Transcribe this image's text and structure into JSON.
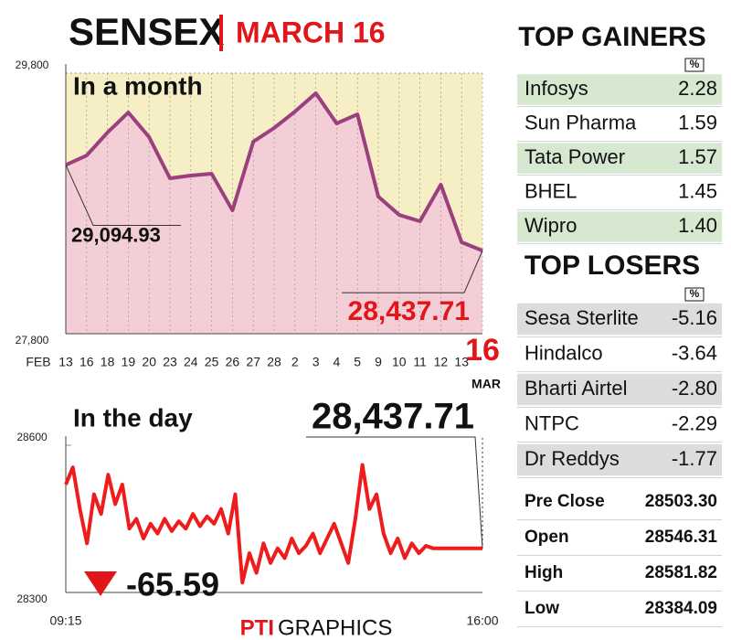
{
  "header": {
    "title": "SENSEX",
    "date": "MARCH 16"
  },
  "chart_data": [
    {
      "type": "line",
      "title": "In a month",
      "color": "#9b3f7e",
      "fill": "#f2c6d9",
      "x_label_start": "FEB",
      "x_label_end": "MAR",
      "categories": [
        "13",
        "16",
        "18",
        "19",
        "20",
        "23",
        "24",
        "25",
        "26",
        "27",
        "28",
        "2",
        "3",
        "4",
        "5",
        "9",
        "10",
        "11",
        "12",
        "13",
        "16"
      ],
      "values": [
        29094.93,
        29168,
        29344,
        29498,
        29309,
        28993,
        29014,
        29028,
        28747,
        29274,
        29379,
        29505,
        29646,
        29414,
        29484,
        28853,
        28712,
        28663,
        28944,
        28502,
        28437.71
      ],
      "value_labels": [
        "29,094.93",
        null,
        null,
        null,
        null,
        null,
        null,
        null,
        null,
        null,
        null,
        null,
        null,
        null,
        null,
        null,
        null,
        null,
        null,
        null,
        "28,437.71"
      ],
      "ylim": [
        27800,
        29800
      ],
      "yticks": [
        {
          "value": 29800,
          "label": "29,800"
        },
        {
          "value": 27800,
          "label": "27,800"
        }
      ],
      "grid": true
    },
    {
      "type": "line",
      "title": "In the day",
      "color": "#ee1c1c",
      "categories": [
        "09:15",
        null,
        null,
        null,
        null,
        null,
        null,
        null,
        null,
        null,
        null,
        null,
        null,
        null,
        null,
        null,
        null,
        null,
        null,
        null,
        null,
        null,
        null,
        null,
        null,
        null,
        null,
        null,
        null,
        null,
        null,
        null,
        null,
        null,
        null,
        null,
        null,
        null,
        null,
        null,
        null,
        null,
        null,
        null,
        null,
        null,
        null,
        null,
        null,
        null,
        null,
        null,
        null,
        null,
        null,
        null,
        null,
        null,
        null,
        "16:00"
      ],
      "values": [
        28520,
        28555,
        28470,
        28400,
        28500,
        28460,
        28540,
        28480,
        28520,
        28430,
        28450,
        28410,
        28440,
        28420,
        28450,
        28425,
        28445,
        28430,
        28460,
        28435,
        28455,
        28440,
        28470,
        28420,
        28500,
        28320,
        28380,
        28340,
        28400,
        28360,
        28390,
        28370,
        28410,
        28380,
        28395,
        28420,
        28380,
        28410,
        28440,
        28400,
        28360,
        28450,
        28560,
        28470,
        28500,
        28420,
        28380,
        28410,
        28370,
        28400,
        28380,
        28395,
        28390,
        28390,
        28390,
        28390,
        28390,
        28390,
        28390,
        28390
      ],
      "close_label": "28,437.71",
      "change_label": "-65.59",
      "ylim": [
        28300,
        28600
      ],
      "yticks": [
        28600,
        28300
      ]
    }
  ],
  "top_gainers": {
    "title": "TOP GAINERS",
    "unit": "%",
    "rows": [
      [
        "Infosys",
        "2.28"
      ],
      [
        "Sun Pharma",
        "1.59"
      ],
      [
        "Tata Power",
        "1.57"
      ],
      [
        "BHEL",
        "1.45"
      ],
      [
        "Wipro",
        "1.40"
      ]
    ]
  },
  "top_losers": {
    "title": "TOP LOSERS",
    "unit": "%",
    "rows": [
      [
        "Sesa Sterlite",
        "-5.16"
      ],
      [
        "Hindalco",
        "-3.64"
      ],
      [
        "Bharti Airtel",
        "-2.80"
      ],
      [
        "NTPC",
        "-2.29"
      ],
      [
        "Dr Reddys",
        "-1.77"
      ]
    ]
  },
  "stats": {
    "rows": [
      [
        "Pre Close",
        "28503.30"
      ],
      [
        "Open",
        "28546.31"
      ],
      [
        "High",
        "28581.82"
      ],
      [
        "Low",
        "28384.09"
      ]
    ]
  },
  "footer": {
    "agency": "PTI",
    "label": "GRAPHICS"
  }
}
